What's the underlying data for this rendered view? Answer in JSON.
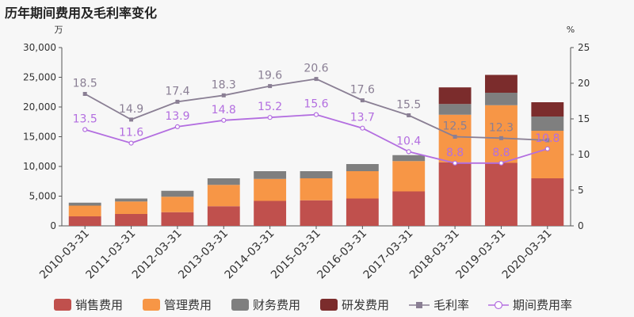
{
  "chart_data": {
    "type": "bar",
    "title": "历年期间费用及毛利率变化",
    "y_left_unit": "万",
    "y_right_unit": "%",
    "ylim_left": [
      0,
      30000
    ],
    "ylim_right": [
      0,
      25
    ],
    "yticks_left": [
      "0",
      "5,000",
      "10,000",
      "15,000",
      "20,000",
      "25,000",
      "30,000"
    ],
    "yticks_right": [
      "0",
      "5",
      "10",
      "15",
      "20",
      "25"
    ],
    "categories": [
      "2010-03-31",
      "2011-03-31",
      "2012-03-31",
      "2013-03-31",
      "2014-03-31",
      "2015-03-31",
      "2016-03-31",
      "2017-03-31",
      "2018-03-31",
      "2019-03-31",
      "2020-03-31"
    ],
    "stacked_series": [
      {
        "name": "销售费用",
        "color": "#c0504d",
        "values": [
          1600,
          2000,
          2300,
          3300,
          4200,
          4300,
          4600,
          5800,
          10700,
          10600,
          8000
        ]
      },
      {
        "name": "管理费用",
        "color": "#f79646",
        "values": [
          1800,
          2100,
          2600,
          3600,
          3700,
          3700,
          4600,
          5100,
          8000,
          9700,
          8000
        ]
      },
      {
        "name": "财务费用",
        "color": "#7f7f7f",
        "values": [
          500,
          500,
          1000,
          1100,
          1300,
          1200,
          1200,
          1000,
          1800,
          2100,
          2400
        ]
      },
      {
        "name": "研发费用",
        "color": "#7b2c2c",
        "values": [
          0,
          0,
          0,
          0,
          0,
          0,
          0,
          0,
          2800,
          3000,
          2400
        ]
      }
    ],
    "line_series": [
      {
        "name": "毛利率",
        "color": "#8a7f94",
        "marker": "square",
        "values": [
          18.5,
          14.9,
          17.4,
          18.3,
          19.6,
          20.6,
          17.6,
          15.5,
          12.5,
          12.3,
          12.0
        ],
        "labels": [
          "18.5",
          "14.9",
          "17.4",
          "18.3",
          "19.6",
          "20.6",
          "17.6",
          "15.5",
          "12.5",
          "12.3",
          ""
        ]
      },
      {
        "name": "期间费用率",
        "color": "#b36ee0",
        "marker": "circle",
        "values": [
          13.5,
          11.6,
          13.9,
          14.8,
          15.2,
          15.6,
          13.7,
          10.4,
          8.8,
          8.8,
          10.8
        ],
        "labels": [
          "13.5",
          "11.6",
          "13.9",
          "14.8",
          "15.2",
          "15.6",
          "13.7",
          "10.4",
          "8.8",
          "8.8",
          "10.8"
        ]
      }
    ],
    "legend": "bottom"
  }
}
